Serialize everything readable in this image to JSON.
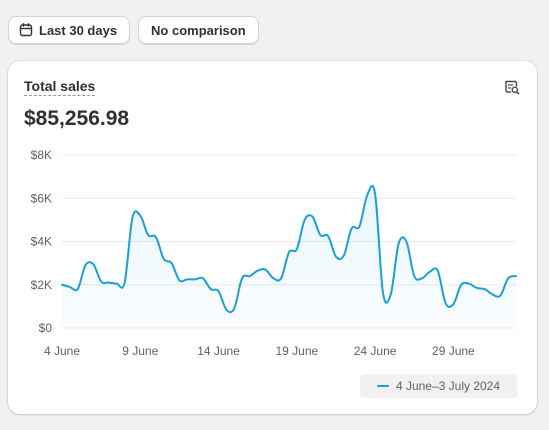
{
  "toolbar": {
    "date_range_label": "Last 30 days",
    "date_range_icon": "calendar-icon",
    "comparison_label": "No comparison"
  },
  "card": {
    "title": "Total sales",
    "value": "$85,256.98",
    "action_icon": "chart-explore-icon"
  },
  "colors": {
    "line": "#1aa0d6",
    "grid": "#ebebeb",
    "tick_text": "#616161"
  },
  "chart_data": {
    "type": "line",
    "title": "",
    "xlabel": "",
    "ylabel": "",
    "ylim": [
      0,
      8000
    ],
    "grid": true,
    "legend_position": "bottom-right",
    "y_ticks": [
      0,
      2000,
      4000,
      6000,
      8000
    ],
    "y_tick_labels": [
      "$0",
      "$2K",
      "$4K",
      "$6K",
      "$8K"
    ],
    "x_ticks": [
      0,
      5,
      10,
      15,
      20,
      25
    ],
    "x_tick_labels": [
      "4 June",
      "9 June",
      "14 June",
      "19 June",
      "24 June",
      "29 June"
    ],
    "x": [
      0,
      0.5,
      1,
      1.5,
      2,
      2.5,
      3,
      3.5,
      4,
      4.5,
      5,
      5.5,
      6,
      6.5,
      7,
      7.5,
      8,
      8.5,
      9,
      9.5,
      10,
      10.5,
      11,
      11.5,
      12,
      12.5,
      13,
      13.5,
      14,
      14.5,
      15,
      15.5,
      16,
      16.5,
      17,
      17.5,
      18,
      18.5,
      19,
      19.5,
      20,
      20.5,
      21,
      21.5,
      22,
      22.5,
      23,
      23.5,
      24,
      24.5,
      25,
      25.5,
      26,
      26.5,
      27,
      27.5,
      28,
      28.5,
      29
    ],
    "series": [
      {
        "name": "4 June–3 July 2024",
        "values": [
          2000,
          1900,
          1800,
          2900,
          2950,
          2150,
          2100,
          2050,
          2100,
          5100,
          5200,
          4300,
          4200,
          3200,
          3000,
          2200,
          2250,
          2250,
          2300,
          1800,
          1700,
          850,
          900,
          2300,
          2400,
          2650,
          2700,
          2300,
          2300,
          3500,
          3650,
          5000,
          5150,
          4300,
          4250,
          3300,
          3350,
          4600,
          4700,
          6150,
          6200,
          1650,
          1550,
          3900,
          4000,
          2400,
          2300,
          2600,
          2650,
          1150,
          1100,
          2000,
          2050,
          1850,
          1800,
          1550,
          1500,
          2300,
          2400
        ]
      }
    ]
  }
}
